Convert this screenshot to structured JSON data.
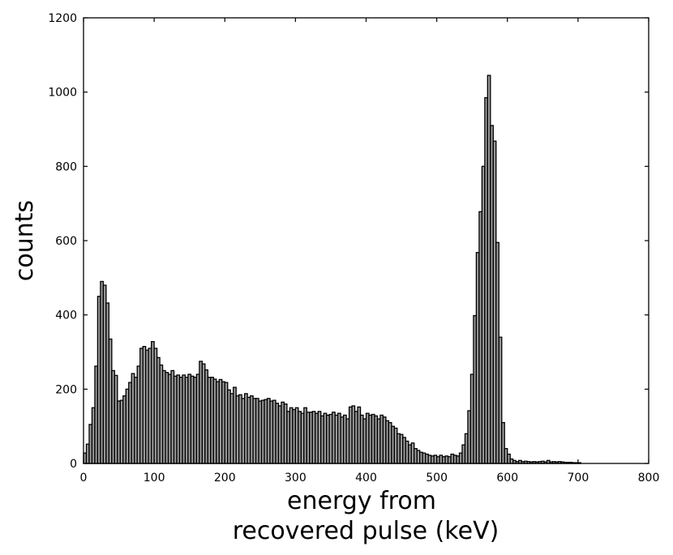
{
  "chart_data": {
    "type": "bar",
    "title": "",
    "xlabel": [
      "energy from",
      "recovered pulse (keV)"
    ],
    "ylabel": "counts",
    "xlim": [
      0,
      800
    ],
    "ylim": [
      0,
      1200
    ],
    "x_ticks": [
      "0",
      "100",
      "200",
      "300",
      "400",
      "500",
      "600",
      "700",
      "800"
    ],
    "y_ticks": [
      "0",
      "200",
      "400",
      "600",
      "800",
      "1000",
      "1200"
    ],
    "grid": false,
    "legend": "none",
    "bar_color": "#999999",
    "bin_width_kev": 4,
    "bin_start_kev": 0,
    "values": [
      28,
      52,
      105,
      150,
      262,
      450,
      490,
      480,
      432,
      335,
      250,
      237,
      168,
      170,
      182,
      200,
      218,
      242,
      232,
      262,
      310,
      315,
      305,
      310,
      328,
      310,
      285,
      265,
      250,
      245,
      240,
      250,
      235,
      238,
      232,
      238,
      232,
      240,
      235,
      232,
      240,
      275,
      268,
      252,
      232,
      232,
      227,
      220,
      226,
      220,
      218,
      198,
      188,
      205,
      182,
      185,
      175,
      188,
      178,
      182,
      175,
      175,
      168,
      170,
      172,
      175,
      168,
      170,
      162,
      155,
      165,
      160,
      140,
      150,
      145,
      150,
      140,
      135,
      150,
      138,
      138,
      140,
      135,
      140,
      128,
      135,
      130,
      132,
      138,
      130,
      135,
      125,
      130,
      120,
      152,
      155,
      140,
      152,
      130,
      120,
      135,
      130,
      132,
      128,
      120,
      130,
      125,
      115,
      110,
      100,
      95,
      80,
      78,
      70,
      60,
      50,
      55,
      40,
      35,
      30,
      28,
      25,
      22,
      20,
      22,
      18,
      22,
      18,
      20,
      18,
      25,
      22,
      20,
      28,
      50,
      80,
      142,
      240,
      398,
      568,
      678,
      800,
      985,
      1045,
      910,
      868,
      595,
      340,
      110,
      40,
      25,
      12,
      8,
      5,
      8,
      5,
      6,
      5,
      4,
      5,
      4,
      5,
      6,
      4,
      8,
      4,
      5,
      4,
      5,
      4,
      3,
      3,
      3,
      2,
      2,
      2
    ]
  }
}
